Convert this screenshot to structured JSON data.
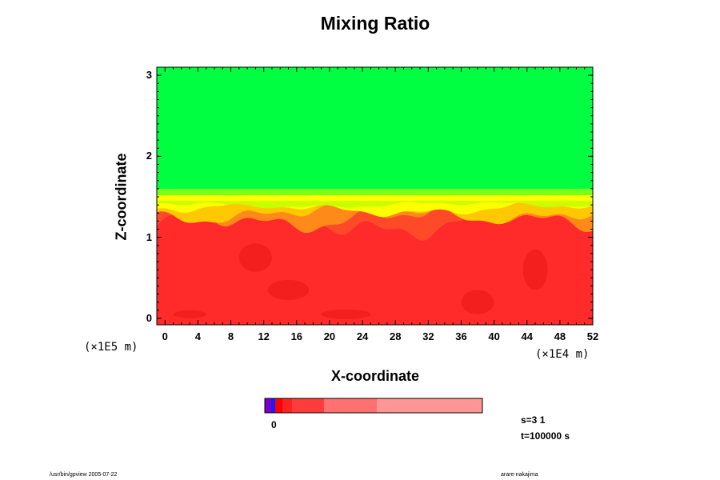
{
  "chart_data": {
    "type": "heatmap",
    "title": "Mixing Ratio",
    "xlabel": "X-coordinate",
    "ylabel": "Z-coordinate",
    "x_scale_note": "(×1E4 m)",
    "y_scale_note": "(×1E5 m)",
    "xlim": [
      -1,
      52
    ],
    "ylim": [
      -0.08,
      3.1
    ],
    "x_ticks": [
      0,
      4,
      8,
      12,
      16,
      20,
      24,
      28,
      32,
      36,
      40,
      44,
      48,
      52
    ],
    "y_ticks": [
      0,
      1,
      2,
      3
    ],
    "regions": [
      {
        "color": "#ff2a2a",
        "z_range": [
          -0.08,
          1.45
        ]
      },
      {
        "color": "#00ff40",
        "z_range": [
          1.45,
          3.1
        ]
      }
    ],
    "transition_band": {
      "z_range": [
        1.15,
        1.6
      ],
      "colors": [
        "#ff4a2a",
        "#ff8a1a",
        "#ffc800",
        "#ffff00",
        "#c8ff00"
      ]
    },
    "colorbar": {
      "label": "0",
      "segments": [
        "#7a00c8",
        "#1a1aff",
        "#ff0000",
        "#ff2222",
        "#ff3c3c",
        "#ff7070",
        "#ff9696"
      ]
    },
    "annotations": [
      "s=3 1",
      "t=100000 s"
    ]
  },
  "footer": {
    "left": "/usr/bin/gpview 2005-07-22",
    "right": "arare-nakajima"
  },
  "colors": {
    "frame": "#000000",
    "green": "#00ff40",
    "red": "#ff2a2a"
  }
}
